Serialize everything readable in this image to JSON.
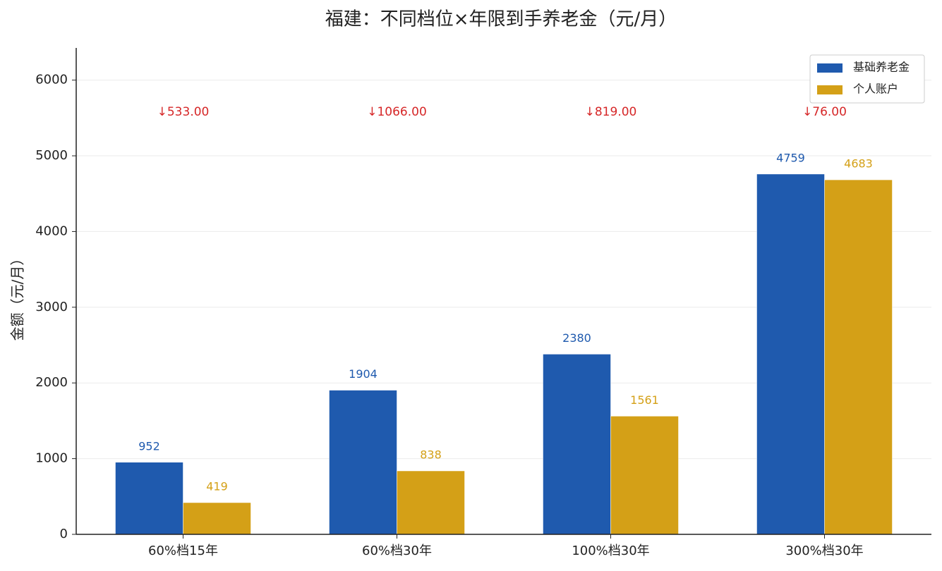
{
  "chart_data": {
    "type": "bar",
    "title": "福建：不同档位×年限到手养老金（元/月）",
    "y_label": "金额（元/月）",
    "categories": [
      "60%档15年",
      "60%档30年",
      "100%档30年",
      "300%档30年"
    ],
    "series": [
      {
        "name": "基础养老金",
        "color": "#1f5aae",
        "values": [
          952,
          1904,
          2380,
          4759
        ]
      },
      {
        "name": "个人账户",
        "color": "#d4a017",
        "values": [
          419,
          838,
          1561,
          4683
        ]
      }
    ],
    "annotations": [
      "↓533.00",
      "↓1066.00",
      "↓819.00",
      "↓76.00"
    ],
    "annotation_color": "#d62728",
    "ylim": [
      0,
      6425
    ],
    "yticks": [
      0,
      1000,
      2000,
      3000,
      4000,
      5000,
      6000
    ],
    "grid": true,
    "legend": "upper-right"
  }
}
